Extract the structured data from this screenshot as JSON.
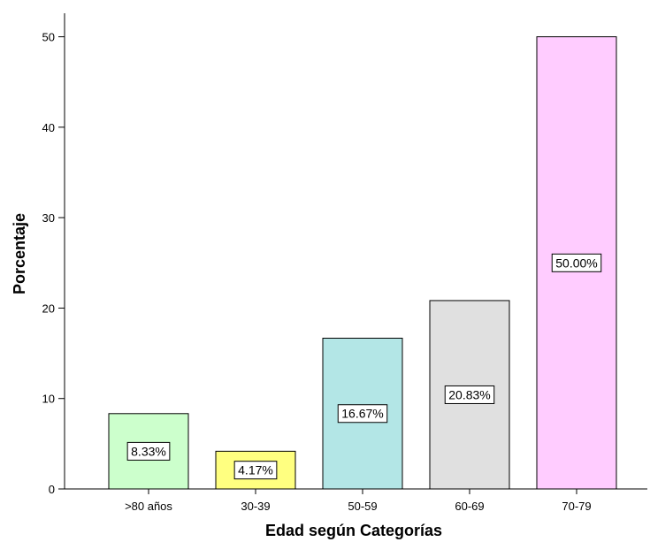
{
  "chart_data": {
    "type": "bar",
    "title": "",
    "xlabel": "Edad según Categorías",
    "ylabel": "Porcentaje",
    "categories": [
      ">80 años",
      "30-39",
      "50-59",
      "60-69",
      "70-79"
    ],
    "values": [
      8.33,
      4.17,
      16.67,
      20.83,
      50.0
    ],
    "data_labels": [
      "8.33%",
      "4.17%",
      "16.67%",
      "20.83%",
      "50.00%"
    ],
    "bar_colors": [
      "#ccffcc",
      "#ffff80",
      "#b3e6e6",
      "#e0e0e0",
      "#ffccff"
    ],
    "ylim": [
      0,
      52.6
    ],
    "yticks": [
      0,
      10,
      20,
      30,
      40,
      50
    ],
    "grid": false,
    "legend": "none"
  }
}
